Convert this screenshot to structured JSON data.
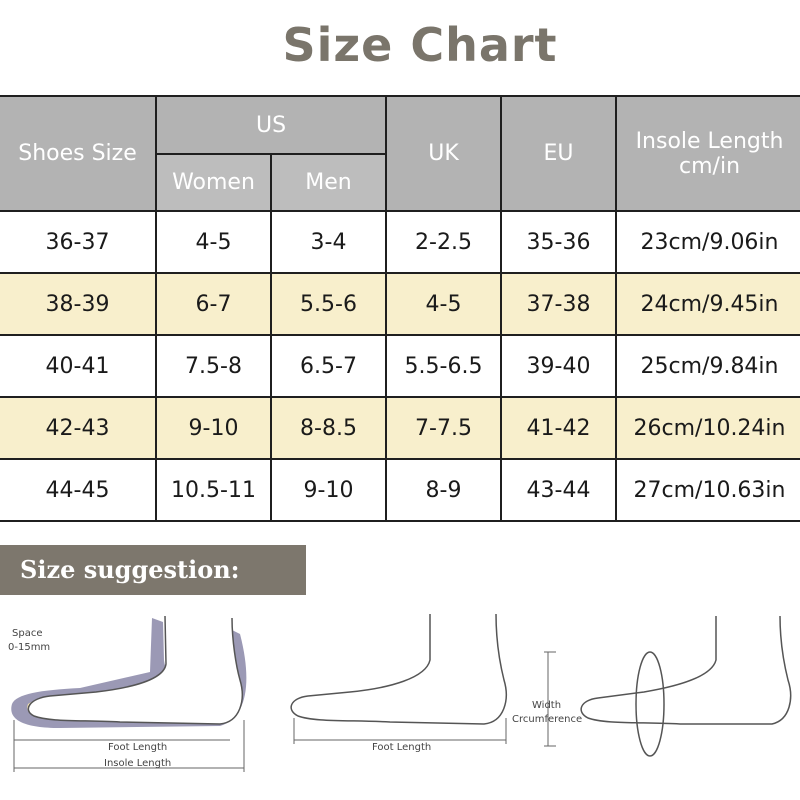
{
  "title": "Size Chart",
  "table": {
    "headers": {
      "shoes_size": "Shoes Size",
      "us": "US",
      "women": "Women",
      "men": "Men",
      "uk": "UK",
      "eu": "EU",
      "insole_line1": "Insole Length",
      "insole_line2": "cm/in"
    },
    "rows": [
      {
        "shoes": "36-37",
        "women": "4-5",
        "men": "3-4",
        "uk": "2-2.5",
        "eu": "35-36",
        "insole": "23cm/9.06in"
      },
      {
        "shoes": "38-39",
        "women": "6-7",
        "men": "5.5-6",
        "uk": "4-5",
        "eu": "37-38",
        "insole": "24cm/9.45in"
      },
      {
        "shoes": "40-41",
        "women": "7.5-8",
        "men": "6.5-7",
        "uk": "5.5-6.5",
        "eu": "39-40",
        "insole": "25cm/9.84in"
      },
      {
        "shoes": "42-43",
        "women": "9-10",
        "men": "8-8.5",
        "uk": "7-7.5",
        "eu": "41-42",
        "insole": "26cm/10.24in"
      },
      {
        "shoes": "44-45",
        "women": "10.5-11",
        "men": "9-10",
        "uk": "8-9",
        "eu": "43-44",
        "insole": "27cm/10.63in"
      }
    ]
  },
  "suggestion": {
    "banner": "Size suggestion:",
    "space_line1": "Space",
    "space_line2": "0-15mm",
    "foot_length": "Foot Length",
    "insole_length": "Insole Length",
    "foot_length_2": "Foot Length",
    "width_line1": "Width",
    "width_line2": "Crcumference"
  },
  "colors": {
    "title": "#7a756b",
    "header_bg": "#b3b3b3",
    "row_highlight": "#f8efcc",
    "banner_bg": "#7d776d",
    "insole_outline": "#8a87a8",
    "insole_fill": "#f3e4b0"
  }
}
